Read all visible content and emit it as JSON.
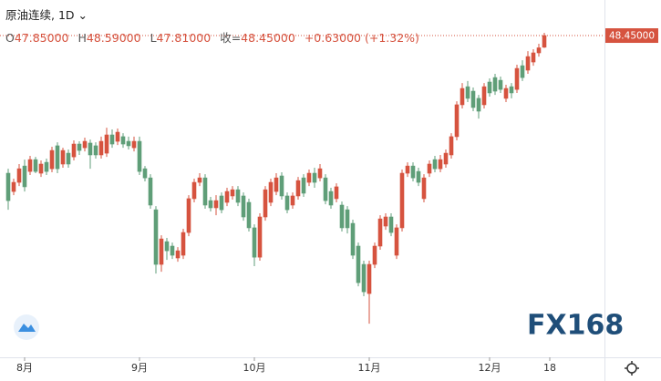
{
  "chart_data": {
    "type": "candlestick",
    "header": {
      "title": "原油连续, 1D",
      "items": [
        {
          "label": "O",
          "value": "47.85000"
        },
        {
          "label": "H",
          "value": "48.59000"
        },
        {
          "label": "L",
          "value": "47.81000"
        },
        {
          "label": "收=",
          "value": "48.45000"
        },
        {
          "label": "",
          "value": "+0.63000 (+1.32%)"
        }
      ]
    },
    "logo": "FX168",
    "last_price": {
      "value": 48.45,
      "label": "48.45000"
    },
    "up_color": "#d6533f",
    "down_color": "#5f9e78",
    "open": [
      41.37,
      40.43,
      40.9,
      41.74,
      41.46,
      42.07,
      41.37,
      41.93,
      41.6,
      42.78,
      41.84,
      42.4,
      42.21,
      42.87,
      42.68,
      42.92,
      42.78,
      42.31,
      42.4,
      43.34,
      43.01,
      43.25,
      43.01,
      42.68,
      43.01,
      41.6,
      41.13,
      39.49,
      36.68,
      37.85,
      37.62,
      37.01,
      37.15,
      38.32,
      40.06,
      40.9,
      41.13,
      39.96,
      39.59,
      40.2,
      39.87,
      40.2,
      40.52,
      40.2,
      39.87,
      38.56,
      37.05,
      39.12,
      39.87,
      40.43,
      41.23,
      40.2,
      39.73,
      40.2,
      41.13,
      40.9,
      41.37,
      41.13,
      41.13,
      40.43,
      40.06,
      39.73,
      39.49,
      38.79,
      37.62,
      36.68,
      35.18,
      36.68,
      37.62,
      38.65,
      39.12,
      37.15,
      38.56,
      41.37,
      41.74,
      41.46,
      40.06,
      41.37,
      42.07,
      41.6,
      41.84,
      42.31,
      43.25,
      44.89,
      45.82,
      45.59,
      45.22,
      44.89,
      46.06,
      46.29,
      46.15,
      45.22,
      45.82,
      45.68,
      46.9,
      46.67,
      47.09,
      47.56,
      47.85
    ],
    "high": [
      41.6,
      41.09,
      41.84,
      42.07,
      42.26,
      42.21,
      42.03,
      42.12,
      42.73,
      42.96,
      42.68,
      42.59,
      43.06,
      43.01,
      43.2,
      43.1,
      42.96,
      43.25,
      43.71,
      43.62,
      43.67,
      43.43,
      43.25,
      43.25,
      43.25,
      41.74,
      41.32,
      39.68,
      38.18,
      38.04,
      37.8,
      37.57,
      38.51,
      40.24,
      41.09,
      41.37,
      41.32,
      40.15,
      40.24,
      40.38,
      40.62,
      40.71,
      40.71,
      40.38,
      40.06,
      38.74,
      39.31,
      40.71,
      41.09,
      41.37,
      41.42,
      40.38,
      40.38,
      41.18,
      41.32,
      41.56,
      41.65,
      41.84,
      41.32,
      40.62,
      40.85,
      39.91,
      39.68,
      38.98,
      37.8,
      36.87,
      36.87,
      37.8,
      39.21,
      39.31,
      39.31,
      38.74,
      41.56,
      41.93,
      41.93,
      41.65,
      41.32,
      42.03,
      42.26,
      42.31,
      42.59,
      43.43,
      45.07,
      46.01,
      46.11,
      45.78,
      45.4,
      46.01,
      46.25,
      46.48,
      46.34,
      45.92,
      46.01,
      46.95,
      47.18,
      47.65,
      47.75,
      48.03,
      48.59
    ],
    "low": [
      39.49,
      40.24,
      40.71,
      40.43,
      41.28,
      41.37,
      41.18,
      41.28,
      41.42,
      41.37,
      41.65,
      41.65,
      42.03,
      42.31,
      42.49,
      41.6,
      42.12,
      42.12,
      42.21,
      42.68,
      42.82,
      42.68,
      42.59,
      42.49,
      41.28,
      40.95,
      39.54,
      36.21,
      36.3,
      36.91,
      36.96,
      36.82,
      36.96,
      38.13,
      39.87,
      40.71,
      39.54,
      39.4,
      39.21,
      39.31,
      39.68,
      40.01,
      39.68,
      38.93,
      38.37,
      36.59,
      36.87,
      38.93,
      39.68,
      40.24,
      40.01,
      39.31,
      39.54,
      40.01,
      40.15,
      40.71,
      40.62,
      40.95,
      39.77,
      39.54,
      39.87,
      38.37,
      38.27,
      36.96,
      35.55,
      35.04,
      33.63,
      36.49,
      37.43,
      38.46,
      38.13,
      36.96,
      38.37,
      41.18,
      40.95,
      40.71,
      39.87,
      41.18,
      41.42,
      41.42,
      41.65,
      42.12,
      43.06,
      44.7,
      45.03,
      44.56,
      44.18,
      44.7,
      45.31,
      45.4,
      45.5,
      45.03,
      45.22,
      45.5,
      46.11,
      46.48,
      46.9,
      47.37,
      47.81
    ],
    "close": [
      39.96,
      40.9,
      41.6,
      40.67,
      42.07,
      41.46,
      41.84,
      41.46,
      42.54,
      41.6,
      42.54,
      41.84,
      42.87,
      42.54,
      43.01,
      42.31,
      42.31,
      43.01,
      43.34,
      42.87,
      43.48,
      42.87,
      42.78,
      43.01,
      41.46,
      41.13,
      39.73,
      36.68,
      37.99,
      37.38,
      37.15,
      37.38,
      38.32,
      40.06,
      40.9,
      41.13,
      39.73,
      39.59,
      39.96,
      39.49,
      40.43,
      40.52,
      39.87,
      39.12,
      38.56,
      37.05,
      39.12,
      40.52,
      40.9,
      41.13,
      40.2,
      39.49,
      40.2,
      40.99,
      40.34,
      41.37,
      40.9,
      41.6,
      39.96,
      39.73,
      40.67,
      38.56,
      38.56,
      37.15,
      35.74,
      35.27,
      36.68,
      37.62,
      39.02,
      39.12,
      38.32,
      38.56,
      41.37,
      41.74,
      41.13,
      40.9,
      41.13,
      41.84,
      41.6,
      42.07,
      42.4,
      43.25,
      44.89,
      45.73,
      45.22,
      44.75,
      44.56,
      45.82,
      45.5,
      45.59,
      45.68,
      45.73,
      45.5,
      46.76,
      46.29,
      47.37,
      47.56,
      47.82,
      48.45
    ],
    "xlim": [
      -1.5,
      109
    ],
    "xticks": [
      {
        "value": 3,
        "label": "8月"
      },
      {
        "value": 24,
        "label": "9月"
      },
      {
        "value": 45,
        "label": "10月"
      },
      {
        "value": 66,
        "label": "11月"
      },
      {
        "value": 88,
        "label": "12月"
      },
      {
        "value": 99,
        "label": "18"
      }
    ],
    "ylim": [
      31.9,
      50.28
    ]
  }
}
